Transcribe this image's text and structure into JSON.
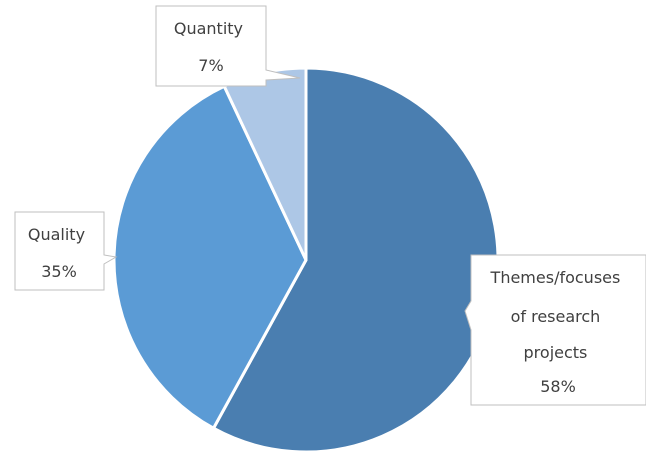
{
  "chart_data": {
    "type": "pie",
    "title": "",
    "slices": [
      {
        "label": "Themes/focuses of research projects",
        "value": 58,
        "value_label": "58%",
        "color": "#4a7eb0"
      },
      {
        "label": "Quality",
        "value": 35,
        "value_label": "35%",
        "color": "#5b9bd5"
      },
      {
        "label": "Quantity",
        "value": 7,
        "value_label": "7%",
        "color": "#adc7e6"
      }
    ],
    "callouts": [
      {
        "lines": [
          "Themes/focuses",
          "of research",
          "projects"
        ],
        "value": "58%"
      },
      {
        "lines": [
          "Quality"
        ],
        "value": "35%"
      },
      {
        "lines": [
          "Quantity"
        ],
        "value": "7%"
      }
    ],
    "start_angle": "12 o'clock",
    "direction": "clockwise",
    "legend": "none",
    "label_style": "callout"
  }
}
